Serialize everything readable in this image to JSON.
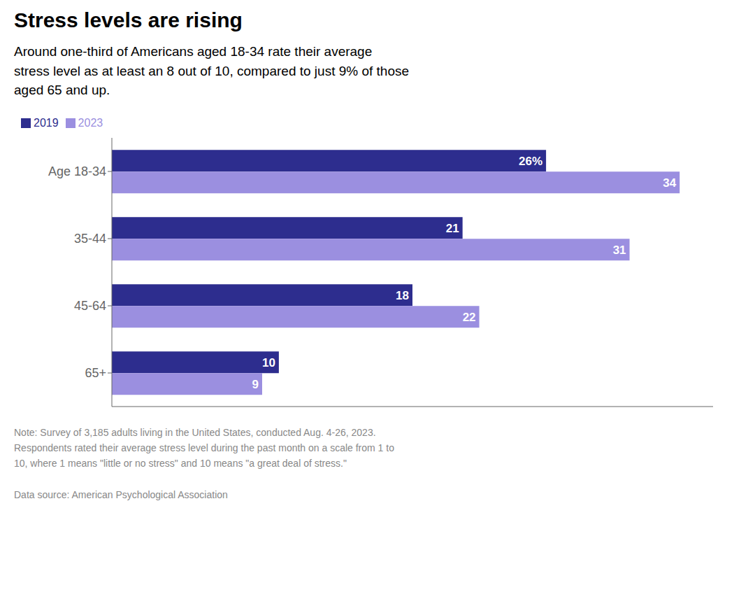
{
  "chart_data": {
    "type": "bar",
    "orientation": "horizontal",
    "title": "Stress levels are rising",
    "subtitle": "Around one-third of Americans aged 18-34 rate their average\nstress level as at least an 8 out of 10, compared to just 9% of those\naged 65 and up.",
    "note": "Note: Survey of 3,185 adults living in the United States, conducted Aug. 4-26, 2023.\nRespondents rated their average stress level during the past month on a scale from 1 to\n10, where 1 means \"little or no stress\" and 10 means \"a great deal of stress.\"\n\nData source: American Psychological Association",
    "categories": [
      "Age 18-34",
      "35-44",
      "45-64",
      "65+"
    ],
    "series": [
      {
        "name": "2019",
        "color": "#2d2d8e",
        "values": [
          26,
          21,
          18,
          10
        ],
        "value_labels": [
          "26%",
          "21",
          "18",
          "10"
        ]
      },
      {
        "name": "2023",
        "color": "#9b8fe0",
        "values": [
          34,
          31,
          22,
          9
        ]
      }
    ],
    "xlim": [
      0,
      36
    ],
    "data_labels": true,
    "tick_labels": "y",
    "legend": "top-left",
    "grid": false
  }
}
